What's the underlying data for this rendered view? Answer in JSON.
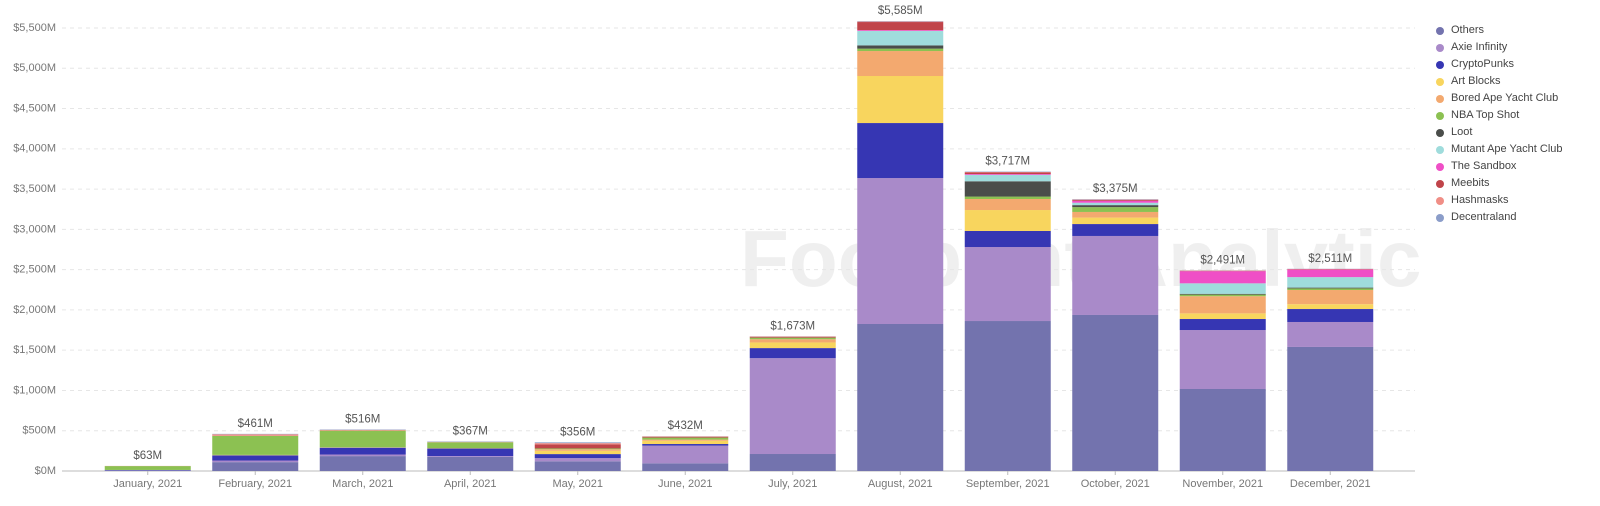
{
  "chart_data": {
    "type": "stacked-bar",
    "watermark": "Footprint Analytics",
    "categories": [
      "January, 2021",
      "February, 2021",
      "March, 2021",
      "April, 2021",
      "May, 2021",
      "June, 2021",
      "July, 2021",
      "August, 2021",
      "September, 2021",
      "October, 2021",
      "November, 2021",
      "December, 2021"
    ],
    "ylim": [
      0,
      5500
    ],
    "yticks": [
      {
        "value": 0,
        "label": "$0M"
      },
      {
        "value": 500,
        "label": "$500M"
      },
      {
        "value": 1000,
        "label": "$1,000M"
      },
      {
        "value": 1500,
        "label": "$1,500M"
      },
      {
        "value": 2000,
        "label": "$2,000M"
      },
      {
        "value": 2500,
        "label": "$2,500M"
      },
      {
        "value": 3000,
        "label": "$3,000M"
      },
      {
        "value": 3500,
        "label": "$3,500M"
      },
      {
        "value": 4000,
        "label": "$4,000M"
      },
      {
        "value": 4500,
        "label": "$4,500M"
      },
      {
        "value": 5000,
        "label": "$5,000M"
      },
      {
        "value": 5500,
        "label": "$5,500M"
      }
    ],
    "grid": true,
    "legend": "right",
    "totals": {
      "values": [
        63,
        461,
        516,
        367,
        356,
        432,
        1673,
        5585,
        3717,
        3375,
        2491,
        2511
      ],
      "value_labels": [
        "$63M",
        "$461M",
        "$516M",
        "$367M",
        "$356M",
        "$432M",
        "$1,673M",
        "$5,585M",
        "$3,717M",
        "$3,375M",
        "$2,491M",
        "$2,511M"
      ]
    },
    "series": [
      {
        "name": "Others",
        "color": "#7373ae",
        "values": [
          5,
          110,
          185,
          175,
          120,
          95,
          211,
          1825,
          1862,
          1937,
          1018,
          1540
        ]
      },
      {
        "name": "Axie Infinity",
        "color": "#a98ac9",
        "values": [
          3,
          20,
          20,
          10,
          40,
          220,
          1190,
          1812,
          919,
          981,
          732,
          310
        ]
      },
      {
        "name": "CryptoPunks",
        "color": "#3636b3",
        "values": [
          5,
          65,
          85,
          95,
          50,
          20,
          125,
          683,
          199,
          148,
          137,
          161
        ]
      },
      {
        "name": "Art Blocks",
        "color": "#f8d55e",
        "values": [
          0,
          5,
          5,
          5,
          40,
          40,
          70,
          584,
          260,
          80,
          70,
          60
        ]
      },
      {
        "name": "Bored Ape Yacht Club",
        "color": "#f3a96f",
        "values": [
          0,
          0,
          0,
          0,
          20,
          15,
          40,
          310,
          137,
          70,
          213,
          176
        ]
      },
      {
        "name": "NBA Top Shot",
        "color": "#8cc152",
        "values": [
          48,
          236,
          206,
          72,
          10,
          25,
          20,
          30,
          30,
          60,
          20,
          20
        ]
      },
      {
        "name": "Loot",
        "color": "#4a4d4a",
        "values": [
          0,
          0,
          0,
          0,
          0,
          0,
          0,
          40,
          190,
          25,
          10,
          10
        ]
      },
      {
        "name": "Mutant Ape Yacht Club",
        "color": "#9fdcdc",
        "values": [
          0,
          0,
          0,
          0,
          0,
          0,
          0,
          180,
          80,
          30,
          130,
          130
        ]
      },
      {
        "name": "The Sandbox",
        "color": "#ef4fc6",
        "values": [
          0,
          0,
          0,
          0,
          0,
          0,
          0,
          10,
          10,
          24,
          151,
          94
        ]
      },
      {
        "name": "Meebits",
        "color": "#c0444a",
        "values": [
          0,
          0,
          0,
          0,
          50,
          10,
          10,
          100,
          20,
          10,
          5,
          5
        ]
      },
      {
        "name": "Hashmasks",
        "color": "#f08e86",
        "values": [
          2,
          20,
          10,
          5,
          16,
          5,
          5,
          6,
          5,
          5,
          3,
          3
        ]
      },
      {
        "name": "Decentraland",
        "color": "#8b9dc9",
        "values": [
          0,
          5,
          5,
          5,
          10,
          2,
          2,
          5,
          5,
          5,
          2,
          2
        ]
      }
    ]
  }
}
